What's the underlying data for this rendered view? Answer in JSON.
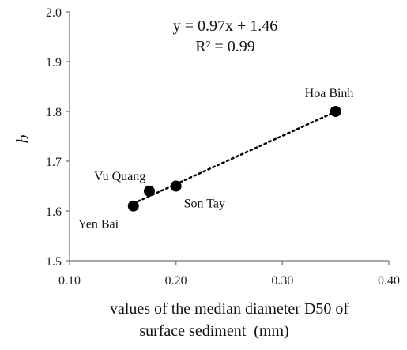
{
  "chart_data": {
    "type": "scatter",
    "title": "",
    "ylabel": "b",
    "xlabel_lines": [
      "values of the median diameter D50 of",
      "surface sediment  (mm)"
    ],
    "xlim": [
      0.1,
      0.4
    ],
    "ylim": [
      1.5,
      2.0
    ],
    "xticks": [
      "0.10",
      "0.20",
      "0.30",
      "0.40"
    ],
    "yticks": [
      "1.5",
      "1.6",
      "1.7",
      "1.8",
      "1.9",
      "2.0"
    ],
    "grid": false,
    "legend": "none",
    "points": [
      {
        "label": "Yen Bai",
        "x": 0.16,
        "y": 1.61
      },
      {
        "label": "Vu Quang",
        "x": 0.175,
        "y": 1.64
      },
      {
        "label": "Son Tay",
        "x": 0.2,
        "y": 1.65
      },
      {
        "label": "Hoa Binh",
        "x": 0.35,
        "y": 1.8
      }
    ],
    "trendline": {
      "style": "dotted",
      "slope": 0.97,
      "intercept": 1.46,
      "x_range": [
        0.16,
        0.35
      ]
    },
    "annotations": {
      "equation": "y = 0.97x + 1.46",
      "r_squared": "R² = 0.99"
    },
    "colors": {
      "marker": "#000000",
      "axis": "#888888",
      "trendline": "#000000"
    }
  }
}
